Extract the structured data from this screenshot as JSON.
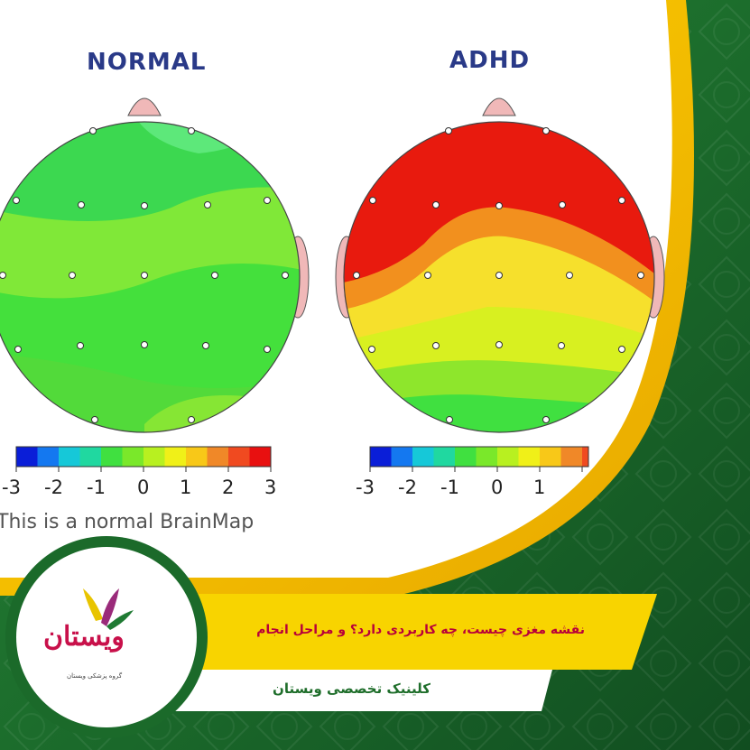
{
  "panels": [
    {
      "title": "NORMAL",
      "caption": "This is a normal BrainMap"
    },
    {
      "title": "ADHD"
    }
  ],
  "colorbar": {
    "ticks": [
      "-3",
      "-2",
      "-1",
      "0",
      "1",
      "2",
      "3"
    ],
    "colors": [
      "#0a1ed8",
      "#1478f0",
      "#16c8d8",
      "#20d8a0",
      "#40e040",
      "#7ae82a",
      "#b8f020",
      "#f0f018",
      "#f8c818",
      "#f08828",
      "#f04a20",
      "#e81010"
    ]
  },
  "banner": {
    "title": "نقشه مغزی چیست، چه کاربردی دارد؟ و مراحل انجام",
    "subtitle": "کلینیک تخصصی ویستان"
  },
  "logo": {
    "mark": "ویستان",
    "small_text": "گروه پزشکی ویستان"
  },
  "colors": {
    "green_dark": "#15592a",
    "green_mid": "#1f7a33",
    "gold": "#f2c200",
    "title_red": "#b8003a",
    "normal_head": "#3fe03a",
    "adhd_red": "#e81a0e",
    "adhd_orange": "#f2901e",
    "adhd_yellow": "#d8f020"
  }
}
